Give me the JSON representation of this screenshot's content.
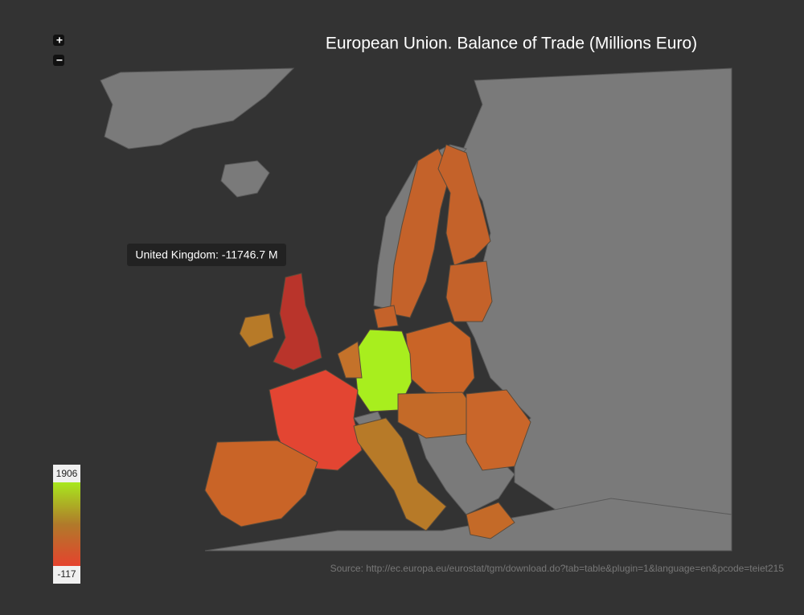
{
  "title": "European Union. Balance of Trade (Millions Euro)",
  "zoom": {
    "in": "+",
    "out": "−"
  },
  "tooltip": "United Kingdom: -11746.7 M",
  "legend": {
    "max": "1906",
    "min": "-117"
  },
  "source": "Source: http://ec.europa.eu/eurostat/tgm/download.do?tab=table&plugin=1&language=en&pcode=teiet215"
}
